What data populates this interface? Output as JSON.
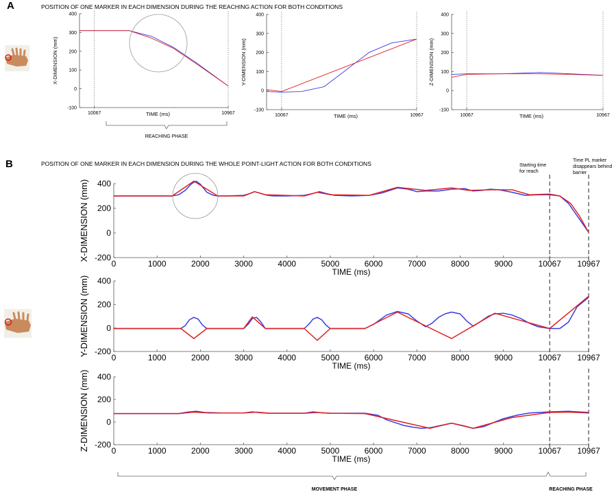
{
  "panels": {
    "a": {
      "letter": "A",
      "title": "POSITION OF ONE MARKER IN EACH DIMENSION DURING THE REACHING  ACTION FOR BOTH CONDITIONS",
      "phase_label": "REACHING PHASE"
    },
    "b": {
      "letter": "B",
      "title": "POSITION OF ONE MARKER IN EACH DIMENSION DURING THE WHOLE POINT-LIGHT ACTION FOR BOTH CONDITIONS",
      "annot_start": [
        "Starting time",
        "for reach"
      ],
      "annot_end": [
        "Time PL marker",
        "disappears behind",
        "barrier"
      ],
      "movement_label": "MOVEMENT PHASE",
      "reaching_label": "REACHING PHASE"
    }
  },
  "colors": {
    "series_blue": "#3a3ae0",
    "series_red": "#e02020",
    "axis": "#555555",
    "circle": "#999999"
  },
  "chart_data": [
    {
      "id": "a-x",
      "type": "line",
      "xlabel": "TIME (ms)",
      "ylabel": "X-DIMENSION (mm)",
      "xlim": [
        9967,
        10967
      ],
      "ylim": [
        -100,
        400
      ],
      "yticks": [
        -100,
        0,
        100,
        200,
        300,
        400
      ],
      "xticks": [
        10067,
        10967
      ],
      "marker": 10067,
      "series": [
        {
          "name": "blue",
          "x": [
            9967,
            10067,
            10300,
            10450,
            10600,
            10750,
            10967
          ],
          "y": [
            310,
            310,
            310,
            280,
            220,
            140,
            15
          ]
        },
        {
          "name": "red",
          "x": [
            9967,
            10067,
            10300,
            10450,
            10600,
            10750,
            10967
          ],
          "y": [
            310,
            310,
            310,
            270,
            215,
            135,
            15
          ]
        }
      ]
    },
    {
      "id": "a-y",
      "type": "line",
      "xlabel": "TIME (ms)",
      "ylabel": "Y-DIMENSION (mm)",
      "xlim": [
        9967,
        10967
      ],
      "ylim": [
        -100,
        400
      ],
      "yticks": [
        -100,
        0,
        100,
        200,
        300,
        400
      ],
      "xticks": [
        10067,
        10967
      ],
      "marker": 10067,
      "series": [
        {
          "name": "blue",
          "x": [
            9967,
            10067,
            10200,
            10350,
            10500,
            10650,
            10800,
            10967
          ],
          "y": [
            -5,
            -8,
            -5,
            20,
            110,
            200,
            250,
            270
          ]
        },
        {
          "name": "red",
          "x": [
            9967,
            10067,
            10967
          ],
          "y": [
            5,
            -5,
            270
          ]
        }
      ]
    },
    {
      "id": "a-z",
      "type": "line",
      "xlabel": "TIME (ms)",
      "ylabel": "Z-DIMENSION (mm)",
      "xlim": [
        9967,
        10967
      ],
      "ylim": [
        -100,
        400
      ],
      "yticks": [
        -100,
        0,
        100,
        200,
        300,
        400
      ],
      "xticks": [
        10067,
        10967
      ],
      "marker": 10067,
      "series": [
        {
          "name": "blue",
          "x": [
            9967,
            10067,
            10300,
            10550,
            10750,
            10967
          ],
          "y": [
            85,
            88,
            88,
            95,
            88,
            80
          ]
        },
        {
          "name": "red",
          "x": [
            9967,
            10067,
            10300,
            10550,
            10750,
            10967
          ],
          "y": [
            70,
            85,
            88,
            88,
            85,
            80
          ]
        }
      ]
    },
    {
      "id": "b-x",
      "type": "line",
      "xlabel": "TIME (ms)",
      "ylabel": "X-DIMENSION (mm)",
      "xlim": [
        0,
        10967
      ],
      "ylim": [
        -200,
        400
      ],
      "yticks": [
        -200,
        0,
        200,
        400
      ],
      "xticks": [
        0,
        1000,
        2000,
        3000,
        4000,
        5000,
        6000,
        7000,
        8000,
        9000,
        10067,
        10967
      ],
      "markers": [
        10067,
        10967
      ],
      "series": [
        {
          "name": "blue",
          "x": [
            0,
            1350,
            1500,
            1650,
            1800,
            1900,
            2000,
            2150,
            2300,
            2400,
            2600,
            3000,
            3150,
            3250,
            3400,
            3550,
            3700,
            4000,
            4400,
            4600,
            4750,
            4900,
            5100,
            5500,
            5900,
            6200,
            6550,
            6800,
            7000,
            7200,
            7500,
            7800,
            8100,
            8300,
            8500,
            8700,
            8900,
            9200,
            9500,
            9800,
            10067,
            10300,
            10500,
            10700,
            10967
          ],
          "y": [
            300,
            300,
            310,
            345,
            400,
            420,
            395,
            330,
            305,
            300,
            300,
            305,
            320,
            335,
            320,
            305,
            300,
            300,
            305,
            320,
            335,
            320,
            305,
            300,
            305,
            325,
            365,
            355,
            335,
            340,
            340,
            355,
            360,
            340,
            345,
            355,
            350,
            330,
            305,
            310,
            310,
            300,
            240,
            140,
            5
          ]
        },
        {
          "name": "red",
          "x": [
            0,
            1350,
            1850,
            2400,
            3000,
            3250,
            3500,
            4400,
            4700,
            5000,
            5900,
            6550,
            7200,
            7800,
            8200,
            8700,
            9200,
            9600,
            10067,
            10300,
            10550,
            10750,
            10967
          ],
          "y": [
            300,
            300,
            420,
            300,
            300,
            335,
            310,
            300,
            330,
            310,
            305,
            370,
            345,
            365,
            345,
            350,
            350,
            310,
            315,
            300,
            240,
            140,
            5
          ]
        }
      ]
    },
    {
      "id": "b-y",
      "type": "line",
      "xlabel": "TIME (ms)",
      "ylabel": "Y-DIMENSION (mm)",
      "xlim": [
        0,
        10967
      ],
      "ylim": [
        -200,
        400
      ],
      "yticks": [
        -200,
        0,
        200,
        400
      ],
      "xticks": [
        0,
        1000,
        2000,
        3000,
        4000,
        5000,
        6000,
        7000,
        8000,
        9000,
        10067,
        10967
      ],
      "markers": [
        10067,
        10967
      ],
      "series": [
        {
          "name": "blue",
          "x": [
            0,
            1550,
            1650,
            1750,
            1850,
            1950,
            2050,
            2150,
            3000,
            3100,
            3200,
            3300,
            3400,
            3500,
            4400,
            4500,
            4600,
            4700,
            4800,
            4900,
            5000,
            5800,
            6000,
            6300,
            6550,
            6800,
            7000,
            7200,
            7350,
            7500,
            7650,
            7800,
            8000,
            8150,
            8300,
            8450,
            8650,
            8800,
            9000,
            9200,
            9400,
            9600,
            9800,
            10067,
            10300,
            10500,
            10700,
            10967
          ],
          "y": [
            -5,
            -5,
            20,
            70,
            90,
            75,
            25,
            -5,
            -5,
            30,
            80,
            90,
            50,
            -5,
            -5,
            30,
            75,
            90,
            70,
            25,
            -5,
            -5,
            30,
            110,
            140,
            120,
            60,
            10,
            40,
            90,
            120,
            135,
            120,
            60,
            15,
            50,
            100,
            120,
            125,
            110,
            80,
            40,
            10,
            -5,
            -5,
            50,
            180,
            260
          ]
        },
        {
          "name": "red",
          "x": [
            0,
            1550,
            1850,
            2150,
            3000,
            3200,
            3500,
            4400,
            4700,
            5000,
            5800,
            6550,
            7800,
            8800,
            10067,
            10967
          ],
          "y": [
            -5,
            -5,
            -90,
            -5,
            -5,
            95,
            -5,
            -5,
            -105,
            -5,
            -5,
            135,
            -90,
            125,
            -5,
            270
          ]
        }
      ]
    },
    {
      "id": "b-z",
      "type": "line",
      "xlabel": "TIME (ms)",
      "ylabel": "Z-DIMENSION (mm)",
      "xlim": [
        0,
        10967
      ],
      "ylim": [
        -200,
        400
      ],
      "yticks": [
        -200,
        0,
        200,
        400
      ],
      "xticks": [
        0,
        1000,
        2000,
        3000,
        4000,
        5000,
        6000,
        7000,
        8000,
        9000,
        10067,
        10967
      ],
      "markers": [
        10067,
        10967
      ],
      "series": [
        {
          "name": "blue",
          "x": [
            0,
            1500,
            1700,
            1900,
            2100,
            2500,
            3000,
            3200,
            3400,
            3600,
            4400,
            4600,
            4800,
            5000,
            5800,
            6100,
            6300,
            6500,
            6700,
            6900,
            7100,
            7300,
            7550,
            7800,
            8050,
            8300,
            8550,
            8800,
            9000,
            9300,
            9600,
            10067,
            10500,
            10967
          ],
          "y": [
            75,
            75,
            88,
            95,
            85,
            80,
            80,
            90,
            82,
            78,
            78,
            90,
            82,
            78,
            78,
            60,
            20,
            -5,
            -30,
            -45,
            -55,
            -50,
            -30,
            -10,
            -30,
            -55,
            -40,
            0,
            30,
            60,
            80,
            90,
            95,
            85
          ]
        },
        {
          "name": "red",
          "x": [
            0,
            1500,
            1850,
            2200,
            3000,
            3300,
            3600,
            4400,
            4700,
            5000,
            5800,
            7300,
            7800,
            8300,
            9200,
            10067,
            10500,
            10967
          ],
          "y": [
            75,
            75,
            88,
            80,
            80,
            88,
            78,
            78,
            85,
            78,
            75,
            -55,
            -10,
            -55,
            40,
            85,
            88,
            80
          ]
        }
      ]
    }
  ]
}
